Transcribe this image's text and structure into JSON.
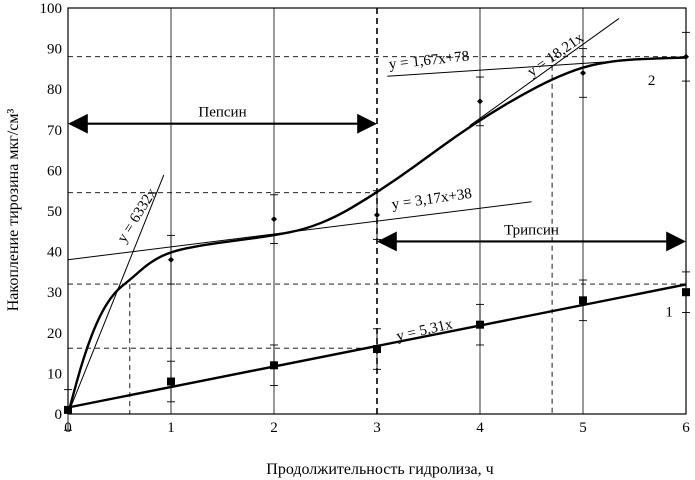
{
  "chart_data": {
    "type": "line",
    "xlabel": "Продолжительность гидролиза, ч",
    "ylabel": "Накопление тирозина мкг/см³",
    "xlim": [
      0,
      6
    ],
    "ylim": [
      0,
      100
    ],
    "x_ticks": [
      "0",
      "1",
      "2",
      "3",
      "4",
      "5",
      "6"
    ],
    "y_ticks": [
      "0",
      "10",
      "20",
      "30",
      "40",
      "50",
      "60",
      "70",
      "80",
      "90",
      "100"
    ],
    "grid": "vertical",
    "series": [
      {
        "name": "1",
        "marker": "square",
        "x": [
          0,
          1,
          2,
          3,
          4,
          5,
          6
        ],
        "y": [
          1,
          8,
          12,
          16,
          22,
          28,
          30
        ],
        "err": [
          0,
          5,
          5,
          5,
          5,
          5,
          5
        ]
      },
      {
        "name": "2",
        "marker": "diamond",
        "x": [
          0,
          1,
          2,
          3,
          4,
          5,
          6
        ],
        "y": [
          1,
          38,
          48,
          49,
          77,
          84,
          88
        ],
        "err": [
          5,
          6,
          6,
          6,
          6,
          6,
          6
        ]
      }
    ],
    "fit_lines": [
      {
        "label": "y = 5,31x"
      },
      {
        "label": "y = 6332x"
      },
      {
        "label": "y = 3,17x+38"
      },
      {
        "label": "y = 1,67x+78"
      },
      {
        "label": "y = 18,21x"
      }
    ],
    "annotations": [
      {
        "text": "Пепсин",
        "from_x": 0,
        "to_x": 3,
        "y": 71.5
      },
      {
        "text": "Трипсин",
        "from_x": 3,
        "to_x": 6,
        "y": 42.5
      }
    ],
    "reference_lines": {
      "horizontal": [
        88,
        54.5,
        32,
        16.2
      ],
      "vertical": [
        0.6,
        4.7
      ]
    }
  }
}
